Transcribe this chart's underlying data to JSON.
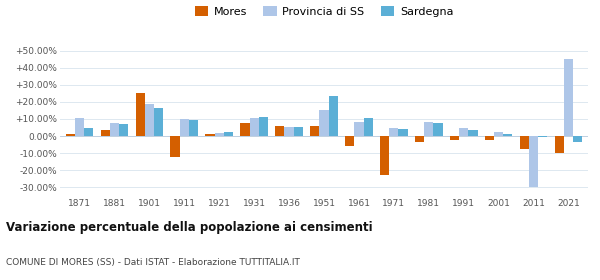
{
  "years": [
    1871,
    1881,
    1901,
    1911,
    1921,
    1931,
    1936,
    1951,
    1961,
    1971,
    1981,
    1991,
    2001,
    2011,
    2021
  ],
  "mores": [
    1.5,
    3.5,
    25.0,
    -12.5,
    1.5,
    7.5,
    6.0,
    6.0,
    -6.0,
    -22.5,
    -3.5,
    -2.0,
    -2.5,
    -7.5,
    -10.0
  ],
  "provincia_ss": [
    10.5,
    7.5,
    18.5,
    10.0,
    2.0,
    10.5,
    5.5,
    15.5,
    8.5,
    4.5,
    8.5,
    4.5,
    2.5,
    -30.0,
    45.0
  ],
  "sardegna": [
    5.0,
    7.0,
    16.5,
    9.5,
    2.5,
    11.0,
    5.5,
    23.5,
    10.5,
    4.0,
    7.5,
    3.5,
    1.0,
    -0.5,
    -3.5
  ],
  "color_mores": "#d45f00",
  "color_provincia": "#aec6e8",
  "color_sardegna": "#5bafd6",
  "ylim": [
    -35,
    55
  ],
  "yticks": [
    -30,
    -20,
    -10,
    0,
    10,
    20,
    30,
    40,
    50
  ],
  "title": "Variazione percentuale della popolazione ai censimenti",
  "subtitle": "COMUNE DI MORES (SS) - Dati ISTAT - Elaborazione TUTTITALIA.IT",
  "legend_labels": [
    "Mores",
    "Provincia di SS",
    "Sardegna"
  ],
  "background_color": "#ffffff",
  "grid_color": "#dde8f0"
}
